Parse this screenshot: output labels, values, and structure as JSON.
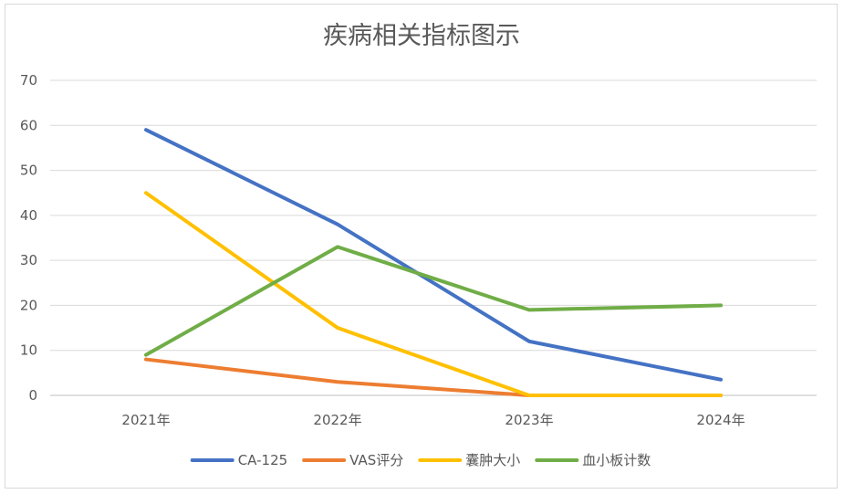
{
  "chart_data": {
    "type": "line",
    "title": "疾病相关指标图示",
    "xlabel": "",
    "ylabel": "",
    "categories": [
      "2021年",
      "2022年",
      "2023年",
      "2024年"
    ],
    "ylim": [
      0,
      70
    ],
    "yticks": [
      0,
      10,
      20,
      30,
      40,
      50,
      60,
      70
    ],
    "grid": true,
    "legend_position": "bottom",
    "series": [
      {
        "name": "CA-125",
        "color": "#4472C4",
        "values": [
          59,
          38,
          12,
          3.5
        ]
      },
      {
        "name": "VAS评分",
        "color": "#ED7D31",
        "values": [
          8,
          3,
          0,
          0
        ]
      },
      {
        "name": "囊肿大小",
        "color": "#FFC000",
        "values": [
          45,
          15,
          0,
          0
        ]
      },
      {
        "name": "血小板计数",
        "color": "#70AD47",
        "values": [
          9,
          33,
          19,
          20
        ]
      }
    ]
  }
}
